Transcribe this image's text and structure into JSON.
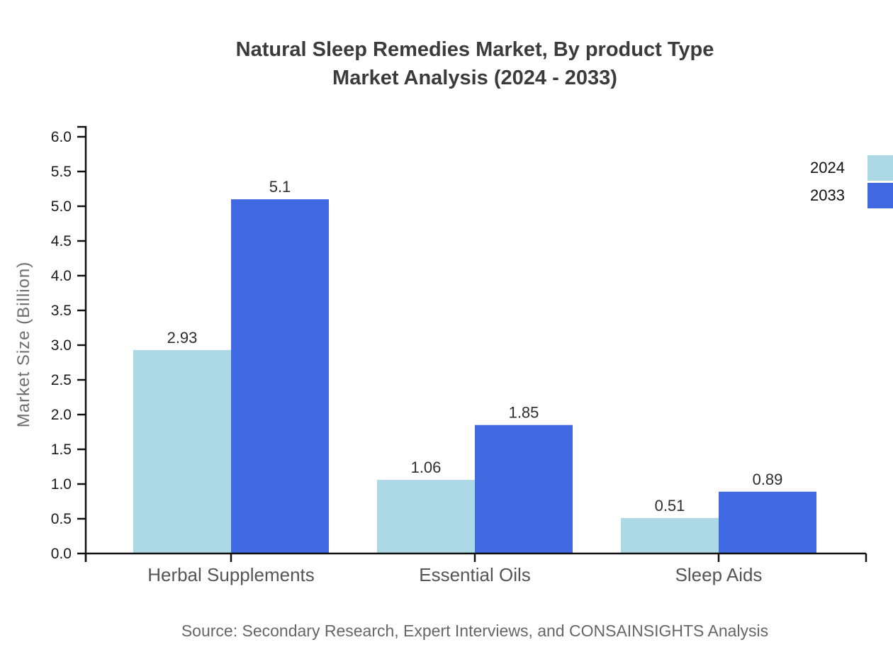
{
  "title": {
    "line1": "Natural Sleep Remedies Market, By product Type",
    "line2": "Market Analysis (2024 - 2033)"
  },
  "source_note": "Source: Secondary Research, Expert Interviews, and CONSAINSIGHTS Analysis",
  "legend": {
    "position": "top-right",
    "items": [
      {
        "label": "2024",
        "color": "#ADD8E6"
      },
      {
        "label": "2033",
        "color": "#4169E1"
      }
    ]
  },
  "chart_data": {
    "type": "bar",
    "title": "Natural Sleep Remedies Market, By product Type Market Analysis (2024 - 2033)",
    "categories": [
      "Herbal Supplements",
      "Essential Oils",
      "Sleep Aids"
    ],
    "series": [
      {
        "name": "2024",
        "color": "#ADD8E6",
        "values": [
          2.93,
          1.06,
          0.51
        ]
      },
      {
        "name": "2033",
        "color": "#4169E1",
        "values": [
          5.1,
          1.85,
          0.89
        ]
      }
    ],
    "xlabel": "",
    "ylabel": "Market Size (Billion)",
    "ylim": [
      0,
      6
    ],
    "ytick_step": 0.5,
    "grid": false,
    "legend_position": "top-right",
    "value_labels": true,
    "colors": {
      "axis": "#111111",
      "tick_label": "#1a1a1a",
      "category_label": "#555555",
      "value_label": "#2e2e2e"
    }
  }
}
